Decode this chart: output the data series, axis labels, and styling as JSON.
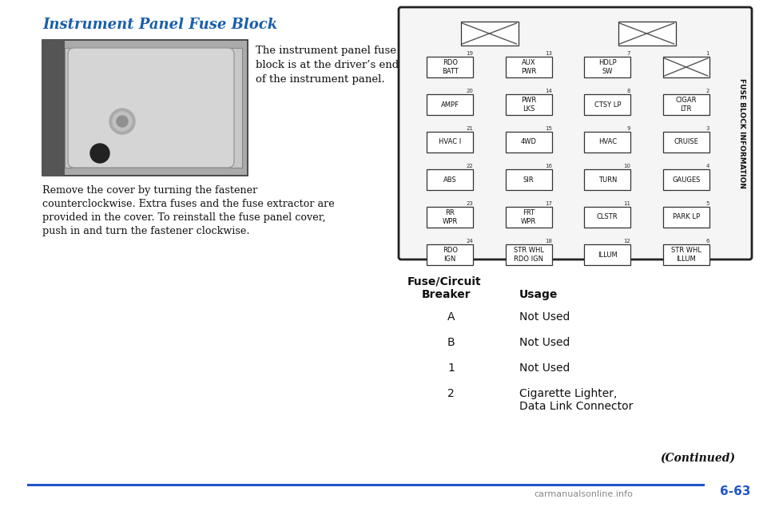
{
  "title": "Instrument Panel Fuse Block",
  "title_color": "#1a5faa",
  "bg_color": "#ffffff",
  "body_text1": [
    "The instrument panel fuse",
    "block is at the driver’s end",
    "of the instrument panel."
  ],
  "body_text2": [
    "Remove the cover by turning the fastener",
    "counterclockwise. Extra fuses and the fuse extractor are",
    "provided in the cover. To reinstall the fuse panel cover,",
    "push in and turn the fastener clockwise."
  ],
  "fuse_block_rows": [
    [
      {
        "num": "19",
        "label": "RDO\nBATT",
        "type": "rect"
      },
      {
        "num": "13",
        "label": "AUX\nPWR",
        "type": "rect"
      },
      {
        "num": "7",
        "label": "HDLP\nSW",
        "type": "rect"
      },
      {
        "num": "1",
        "label": "",
        "type": "xbox"
      }
    ],
    [
      {
        "num": "20",
        "label": "AMPF",
        "type": "rect"
      },
      {
        "num": "14",
        "label": "PWR\nLKS",
        "type": "rect"
      },
      {
        "num": "8",
        "label": "CTSY LP",
        "type": "rect"
      },
      {
        "num": "2",
        "label": "CIGAR\nLTR",
        "type": "rect"
      }
    ],
    [
      {
        "num": "21",
        "label": "HVAC I",
        "type": "rect"
      },
      {
        "num": "15",
        "label": "4WD",
        "type": "rect"
      },
      {
        "num": "9",
        "label": "HVAC",
        "type": "rect"
      },
      {
        "num": "3",
        "label": "CRUISE",
        "type": "rect"
      }
    ],
    [
      {
        "num": "22",
        "label": "ABS",
        "type": "rect"
      },
      {
        "num": "16",
        "label": "SIR",
        "type": "rect"
      },
      {
        "num": "10",
        "label": "TURN",
        "type": "rect"
      },
      {
        "num": "4",
        "label": "GAUGES",
        "type": "rect"
      }
    ],
    [
      {
        "num": "23",
        "label": "RR\nWPR",
        "type": "rect"
      },
      {
        "num": "17",
        "label": "FRT\nWPR",
        "type": "rect"
      },
      {
        "num": "11",
        "label": "CLSTR",
        "type": "rect"
      },
      {
        "num": "5",
        "label": "PARK LP",
        "type": "rect"
      }
    ],
    [
      {
        "num": "24",
        "label": "RDO\nIGN",
        "type": "rect"
      },
      {
        "num": "18",
        "label": "STR WHL\nRDO IGN",
        "type": "rect"
      },
      {
        "num": "12",
        "label": "ILLUM",
        "type": "rect"
      },
      {
        "num": "6",
        "label": "STR WHL\nILLUM",
        "type": "rect"
      }
    ]
  ],
  "fuse_table_rows": [
    [
      "A",
      "Not Used"
    ],
    [
      "B",
      "Not Used"
    ],
    [
      "1",
      "Not Used"
    ],
    [
      "2",
      "Cigarette Lighter,\nData Link Connector"
    ]
  ],
  "page_number": "6-63",
  "continued_text": "(Continued)",
  "watermark": "carmanualsonline.info"
}
